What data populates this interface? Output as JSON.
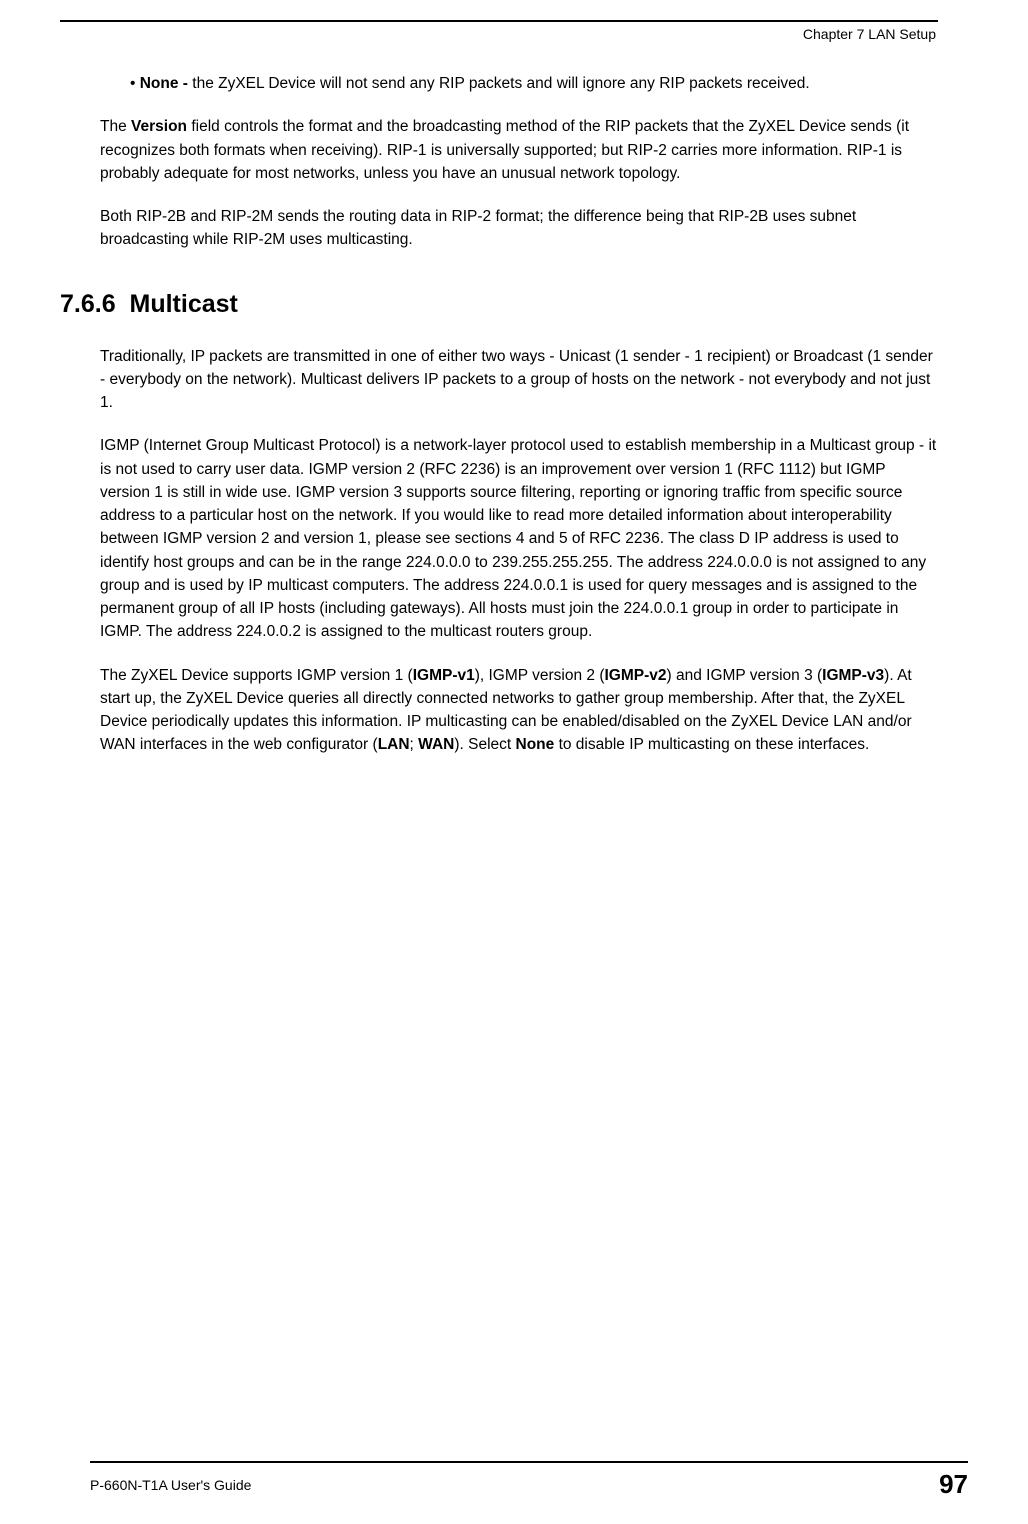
{
  "header": {
    "chapter_label": "Chapter 7 LAN Setup"
  },
  "content": {
    "bullet_none": {
      "prefix": "None - ",
      "text": "the ZyXEL Device will not send any RIP packets and will ignore any RIP packets received."
    },
    "version_paragraph": {
      "prefix": "The ",
      "bold1": "Version",
      "text": " field controls the format and the broadcasting method of the RIP packets that the ZyXEL Device sends (it recognizes both formats when receiving). RIP-1 is universally supported; but RIP-2 carries more information. RIP-1 is probably adequate for most networks, unless you have an unusual network topology."
    },
    "rip2_paragraph": "Both RIP-2B and RIP-2M sends the routing data in RIP-2 format; the difference being that RIP-2B uses subnet broadcasting while RIP-2M uses multicasting.",
    "section_number": "7.6.6",
    "section_title": "Multicast",
    "multicast_intro": "Traditionally, IP packets are transmitted in one of either two ways - Unicast (1 sender - 1 recipient) or Broadcast (1 sender - everybody on the network). Multicast delivers IP packets to a group of hosts on the network - not everybody and not just 1.",
    "igmp_paragraph": "IGMP (Internet Group Multicast Protocol) is a network-layer protocol used to establish membership in a Multicast group - it is not used to carry user data. IGMP version 2 (RFC 2236) is an improvement over version 1 (RFC 1112) but IGMP version 1 is still in wide use. IGMP version 3 supports source filtering, reporting or ignoring traffic from specific source address to a particular host on the network. If you would like to read more detailed information about interoperability between IGMP version 2 and version 1, please see sections 4 and 5 of RFC 2236. The class D IP address is used to identify host groups and can be in the range 224.0.0.0 to 239.255.255.255. The address 224.0.0.0 is not assigned to any group and is used by IP multicast computers. The address 224.0.0.1 is used for query messages and is assigned to the permanent group of all IP hosts (including gateways). All hosts must join the 224.0.0.1 group in order to participate in IGMP. The address 224.0.0.2 is assigned to the multicast routers group.",
    "zyxel_igmp": {
      "text1": "The ZyXEL Device supports IGMP version 1 (",
      "bold1": "IGMP-v1",
      "text2": "), IGMP version 2 (",
      "bold2": "IGMP-v2",
      "text3": ") and IGMP version 3 (",
      "bold3": "IGMP-v3",
      "text4": "). At start up, the ZyXEL Device queries all directly connected networks to gather group membership. After that, the ZyXEL Device periodically updates this information. IP multicasting can be enabled/disabled on the ZyXEL Device LAN and/or WAN interfaces in the web configurator (",
      "bold4": "LAN",
      "text5": "; ",
      "bold5": "WAN",
      "text6": "). Select ",
      "bold6": "None",
      "text7": " to disable IP multicasting on these interfaces."
    }
  },
  "footer": {
    "guide_name": "P-660N-T1A User's Guide",
    "page_number": "97"
  }
}
